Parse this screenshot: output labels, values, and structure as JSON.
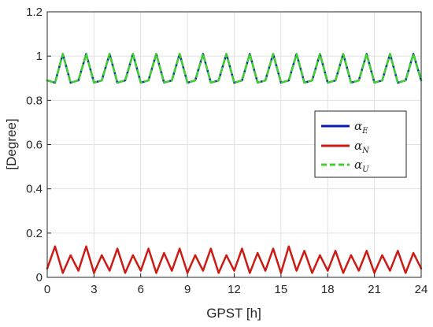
{
  "chart_data": {
    "type": "line",
    "xlabel": "GPST [h]",
    "ylabel": "[Degree]",
    "xlim": [
      0,
      24
    ],
    "ylim": [
      0,
      1.2
    ],
    "xticks": [
      0,
      3,
      6,
      9,
      12,
      15,
      18,
      21,
      24
    ],
    "yticks": [
      0,
      0.2,
      0.4,
      0.6,
      0.8,
      1,
      1.2
    ],
    "xtick_labels": [
      "0",
      "3",
      "6",
      "9",
      "12",
      "15",
      "18",
      "21",
      "24"
    ],
    "ytick_labels": [
      "0",
      "0.2",
      "0.4",
      "0.6",
      "0.8",
      "1",
      "1.2"
    ],
    "grid": true,
    "legend_position": "right-middle",
    "series": [
      {
        "name": "α_E",
        "label_main": "α",
        "label_sub": "E",
        "color": "#0b18b8",
        "dash": "solid",
        "x": [
          0,
          0.5,
          1,
          1.5,
          2,
          2.5,
          3,
          3.5,
          4,
          4.5,
          5,
          5.5,
          6,
          6.5,
          7,
          7.5,
          8,
          8.5,
          9,
          9.5,
          10,
          10.5,
          11,
          11.5,
          12,
          12.5,
          13,
          13.5,
          14,
          14.5,
          15,
          15.5,
          16,
          16.5,
          17,
          17.5,
          18,
          18.5,
          19,
          19.5,
          20,
          20.5,
          21,
          21.5,
          22,
          22.5,
          23,
          23.5,
          24
        ],
        "y": [
          0.89,
          0.88,
          1.01,
          0.88,
          0.89,
          1.01,
          0.88,
          0.89,
          1.01,
          0.88,
          0.89,
          1.01,
          0.88,
          0.89,
          1.01,
          0.88,
          0.89,
          1.01,
          0.88,
          0.89,
          1.01,
          0.88,
          0.89,
          1.01,
          0.88,
          0.89,
          1.01,
          0.88,
          0.89,
          1.01,
          0.88,
          0.89,
          1.01,
          0.88,
          0.89,
          1.01,
          0.88,
          0.89,
          1.01,
          0.88,
          0.89,
          1.01,
          0.88,
          0.89,
          1.01,
          0.88,
          0.89,
          1.01,
          0.89
        ]
      },
      {
        "name": "α_N",
        "label_main": "α",
        "label_sub": "N",
        "color": "#cc1a14",
        "dash": "solid",
        "x": [
          0,
          0.5,
          1,
          1.5,
          2,
          2.5,
          3,
          3.5,
          4,
          4.5,
          5,
          5.5,
          6,
          6.5,
          7,
          7.5,
          8,
          8.5,
          9,
          9.5,
          10,
          10.5,
          11,
          11.5,
          12,
          12.5,
          13,
          13.5,
          14,
          14.5,
          15,
          15.5,
          16,
          16.5,
          17,
          17.5,
          18,
          18.5,
          19,
          19.5,
          20,
          20.5,
          21,
          21.5,
          22,
          22.5,
          23,
          23.5,
          24
        ],
        "y": [
          0.04,
          0.14,
          0.02,
          0.1,
          0.03,
          0.14,
          0.02,
          0.1,
          0.03,
          0.13,
          0.02,
          0.1,
          0.03,
          0.13,
          0.02,
          0.11,
          0.03,
          0.13,
          0.02,
          0.1,
          0.03,
          0.13,
          0.02,
          0.1,
          0.03,
          0.13,
          0.02,
          0.11,
          0.03,
          0.13,
          0.02,
          0.14,
          0.03,
          0.12,
          0.02,
          0.1,
          0.03,
          0.12,
          0.02,
          0.1,
          0.03,
          0.12,
          0.02,
          0.1,
          0.03,
          0.12,
          0.02,
          0.11,
          0.04
        ]
      },
      {
        "name": "α_U",
        "label_main": "α",
        "label_sub": "U",
        "color": "#3fd12a",
        "dash": "dashed",
        "x": [
          0,
          0.5,
          1,
          1.5,
          2,
          2.5,
          3,
          3.5,
          4,
          4.5,
          5,
          5.5,
          6,
          6.5,
          7,
          7.5,
          8,
          8.5,
          9,
          9.5,
          10,
          10.5,
          11,
          11.5,
          12,
          12.5,
          13,
          13.5,
          14,
          14.5,
          15,
          15.5,
          16,
          16.5,
          17,
          17.5,
          18,
          18.5,
          19,
          19.5,
          20,
          20.5,
          21,
          21.5,
          22,
          22.5,
          23,
          23.5,
          24
        ],
        "y": [
          0.89,
          0.88,
          1.01,
          0.88,
          0.89,
          1.01,
          0.88,
          0.89,
          1.01,
          0.88,
          0.89,
          1.01,
          0.88,
          0.89,
          1.01,
          0.88,
          0.89,
          1.01,
          0.88,
          0.89,
          1.01,
          0.88,
          0.89,
          1.01,
          0.88,
          0.89,
          1.01,
          0.88,
          0.89,
          1.01,
          0.88,
          0.89,
          1.01,
          0.88,
          0.89,
          1.01,
          0.88,
          0.89,
          1.01,
          0.88,
          0.89,
          1.01,
          0.88,
          0.89,
          1.01,
          0.88,
          0.89,
          1.01,
          0.89
        ]
      }
    ]
  }
}
